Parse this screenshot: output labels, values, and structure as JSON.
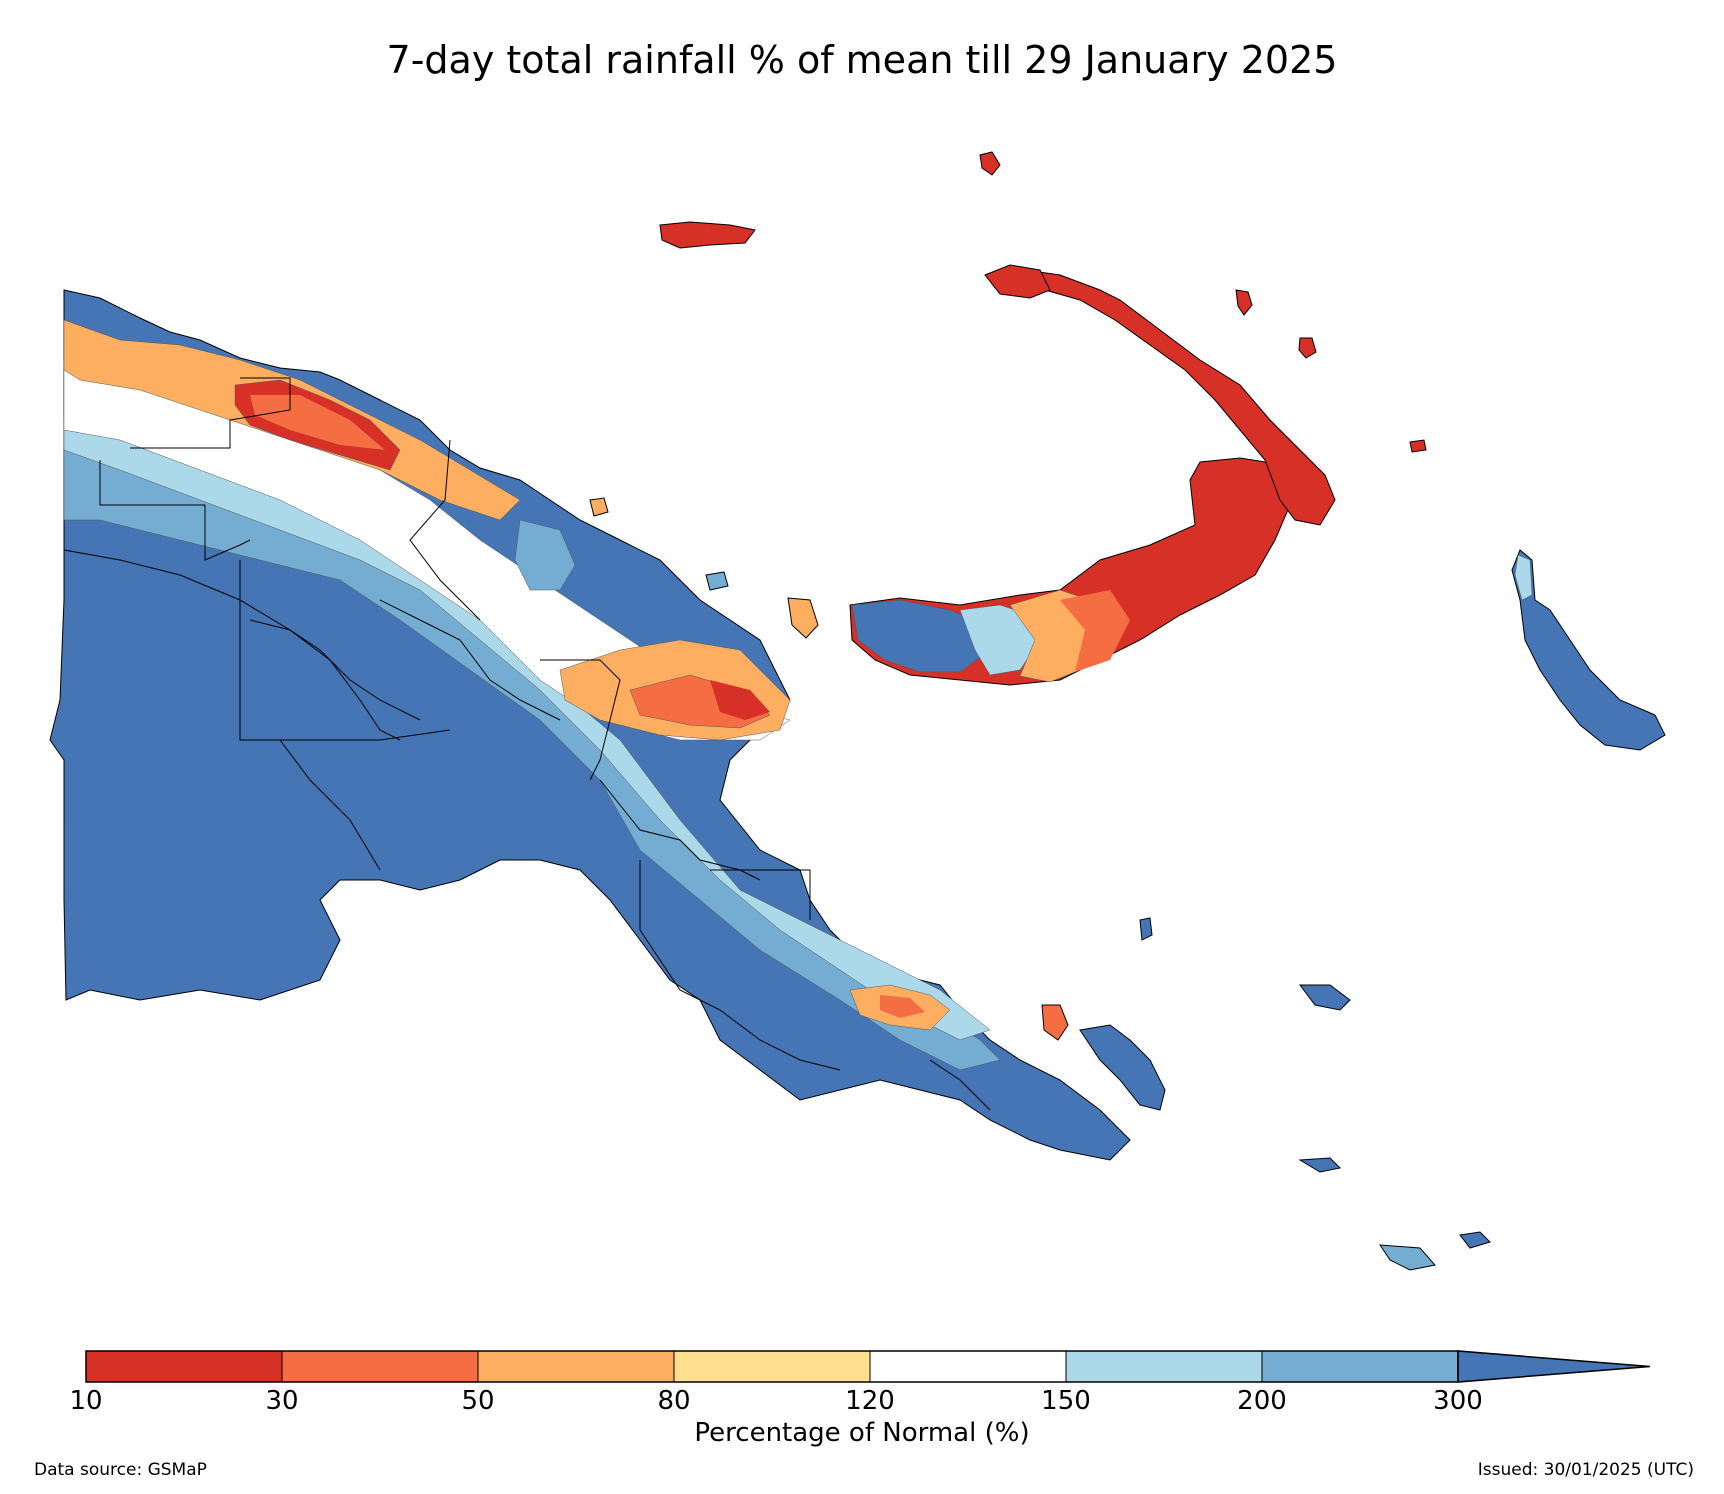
{
  "title": "7-day total rainfall % of mean till 29 January 2025",
  "colorbar": {
    "label": "Percentage of Normal (%)",
    "ticks": [
      "10",
      "30",
      "50",
      "80",
      "120",
      "150",
      "200",
      "300"
    ],
    "bins": [
      {
        "from": 10,
        "to": 30,
        "color": "#d73027"
      },
      {
        "from": 30,
        "to": 50,
        "color": "#f46d43"
      },
      {
        "from": 50,
        "to": 80,
        "color": "#fdae61"
      },
      {
        "from": 80,
        "to": 120,
        "color": "#fee090"
      },
      {
        "from": 120,
        "to": 150,
        "color": "#ffffff"
      },
      {
        "from": 150,
        "to": 200,
        "color": "#abd9e9"
      },
      {
        "from": 200,
        "to": 300,
        "color": "#74add1"
      },
      {
        "from": 300,
        "to": null,
        "color": "#4575b4"
      }
    ]
  },
  "footer": {
    "source": "Data source: GSMaP",
    "issued": "Issued: 30/01/2025 (UTC)"
  }
}
